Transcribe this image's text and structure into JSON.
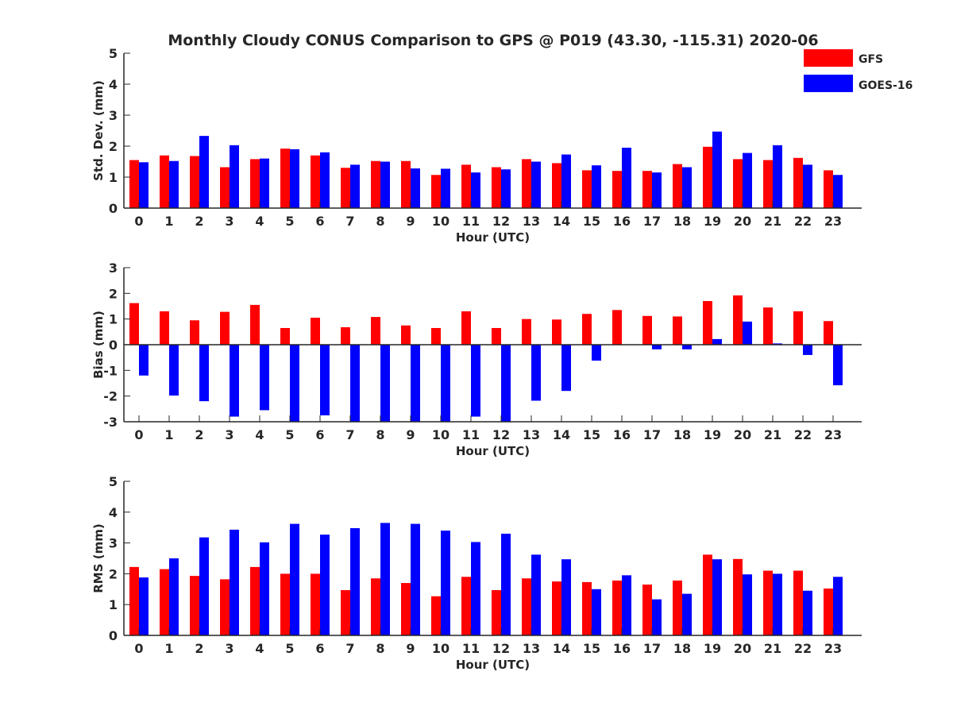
{
  "figure": {
    "title": "Monthly Cloudy CONUS Comparison to GPS @ P019 (43.30, -115.31) 2020-06"
  },
  "legend": {
    "placement": "top-right",
    "items": [
      {
        "label": "GFS",
        "color": "#ff0000"
      },
      {
        "label": "GOES-16",
        "color": "#0000ff"
      }
    ]
  },
  "chart_data": [
    {
      "type": "bar",
      "xlabel": "Hour (UTC)",
      "ylabel": "Std. Dev. (mm)",
      "ylim": [
        0,
        5
      ],
      "yticks": [
        0,
        1,
        2,
        3,
        4,
        5
      ],
      "grid": false,
      "categories": [
        "0",
        "1",
        "2",
        "3",
        "4",
        "5",
        "6",
        "7",
        "8",
        "9",
        "10",
        "11",
        "12",
        "13",
        "14",
        "15",
        "16",
        "17",
        "18",
        "19",
        "20",
        "21",
        "22",
        "23"
      ],
      "series": [
        {
          "name": "GFS",
          "color": "#ff0000",
          "values": [
            1.55,
            1.7,
            1.68,
            1.32,
            1.58,
            1.92,
            1.7,
            1.3,
            1.52,
            1.52,
            1.07,
            1.4,
            1.32,
            1.58,
            1.45,
            1.22,
            1.2,
            1.2,
            1.42,
            1.98,
            1.58,
            1.55,
            1.62,
            1.22
          ]
        },
        {
          "name": "GOES-16",
          "color": "#0000ff",
          "values": [
            1.48,
            1.52,
            2.33,
            2.03,
            1.6,
            1.9,
            1.8,
            1.4,
            1.5,
            1.28,
            1.27,
            1.15,
            1.25,
            1.5,
            1.73,
            1.38,
            1.95,
            1.15,
            1.32,
            2.47,
            1.78,
            2.03,
            1.4,
            1.07
          ]
        }
      ]
    },
    {
      "type": "bar",
      "xlabel": "Hour (UTC)",
      "ylabel": "Bias (mm)",
      "ylim": [
        -3,
        3
      ],
      "yticks": [
        -3,
        -2,
        -1,
        0,
        1,
        2,
        3
      ],
      "grid": false,
      "categories": [
        "0",
        "1",
        "2",
        "3",
        "4",
        "5",
        "6",
        "7",
        "8",
        "9",
        "10",
        "11",
        "12",
        "13",
        "14",
        "15",
        "16",
        "17",
        "18",
        "19",
        "20",
        "21",
        "22",
        "23"
      ],
      "series": [
        {
          "name": "GFS",
          "color": "#ff0000",
          "values": [
            1.62,
            1.3,
            0.95,
            1.28,
            1.55,
            0.65,
            1.05,
            0.68,
            1.08,
            0.75,
            0.65,
            1.3,
            0.65,
            1.0,
            0.98,
            1.2,
            1.35,
            1.12,
            1.1,
            1.7,
            1.92,
            1.45,
            1.3,
            0.92
          ]
        },
        {
          "name": "GOES-16",
          "color": "#0000ff",
          "values": [
            -1.2,
            -1.98,
            -2.2,
            -2.8,
            -2.55,
            -3.0,
            -2.75,
            -3.0,
            -3.0,
            -3.0,
            -3.0,
            -2.8,
            -3.0,
            -2.18,
            -1.8,
            -0.62,
            0.0,
            -0.18,
            -0.18,
            0.22,
            0.9,
            0.05,
            -0.4,
            -1.58
          ]
        }
      ]
    },
    {
      "type": "bar",
      "xlabel": "Hour (UTC)",
      "ylabel": "RMS (mm)",
      "ylim": [
        0,
        5
      ],
      "yticks": [
        0,
        1,
        2,
        3,
        4,
        5
      ],
      "grid": false,
      "categories": [
        "0",
        "1",
        "2",
        "3",
        "4",
        "5",
        "6",
        "7",
        "8",
        "9",
        "10",
        "11",
        "12",
        "13",
        "14",
        "15",
        "16",
        "17",
        "18",
        "19",
        "20",
        "21",
        "22",
        "23"
      ],
      "series": [
        {
          "name": "GFS",
          "color": "#ff0000",
          "values": [
            2.22,
            2.15,
            1.93,
            1.82,
            2.22,
            2.0,
            2.0,
            1.47,
            1.85,
            1.7,
            1.27,
            1.9,
            1.47,
            1.85,
            1.75,
            1.73,
            1.78,
            1.65,
            1.78,
            2.62,
            2.48,
            2.1,
            2.1,
            1.52
          ]
        },
        {
          "name": "GOES-16",
          "color": "#0000ff",
          "values": [
            1.88,
            2.5,
            3.18,
            3.43,
            3.02,
            3.62,
            3.27,
            3.48,
            3.65,
            3.62,
            3.4,
            3.03,
            3.3,
            2.62,
            2.47,
            1.5,
            1.95,
            1.17,
            1.35,
            2.47,
            1.98,
            2.0,
            1.45,
            1.9
          ]
        }
      ]
    }
  ]
}
